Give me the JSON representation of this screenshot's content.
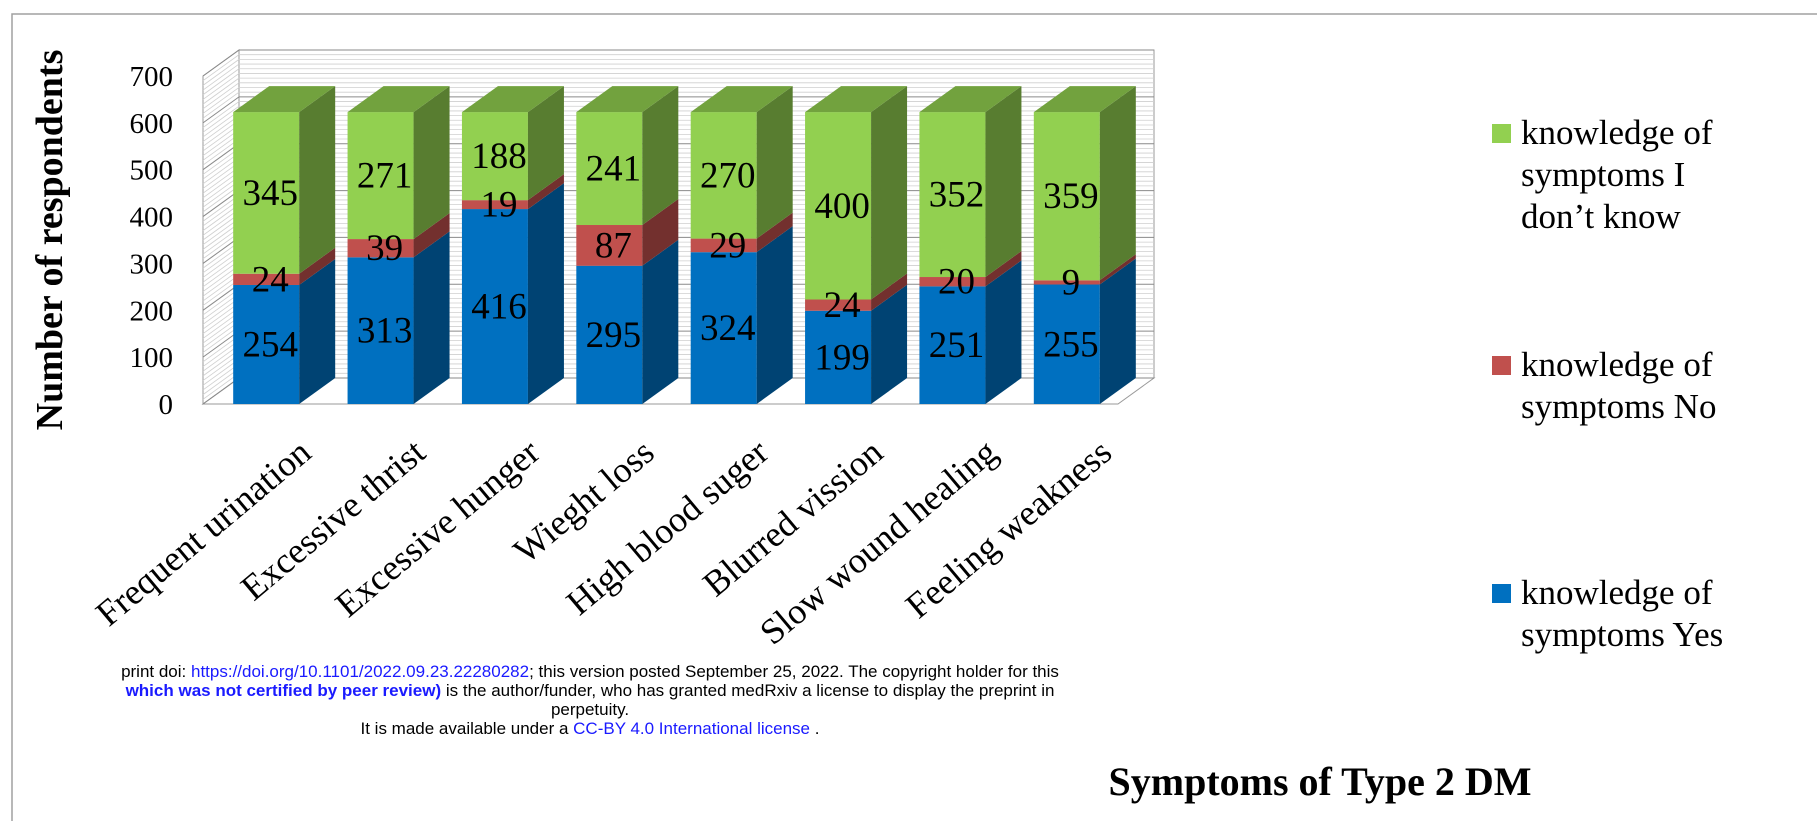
{
  "chart_data": {
    "type": "bar",
    "stacked": true,
    "three_d": true,
    "title": "",
    "xlabel": "Symptoms of Type 2 DM",
    "ylabel": "Number of respondents",
    "ylim": [
      0,
      700
    ],
    "yticks": [
      "0",
      "100",
      "200",
      "300",
      "400",
      "500",
      "600",
      "700"
    ],
    "grid": true,
    "legend_position": "right",
    "categories": [
      "Frequent urination",
      "Excessive thrist",
      "Excessive hunger",
      "Wieght loss",
      "High blood suger",
      "Blurred vission",
      "Slow wound healing",
      "Feeling weakness"
    ],
    "series": [
      {
        "name": "knowledge of symptoms Yes",
        "values": [
          254,
          313,
          416,
          295,
          324,
          199,
          251,
          255
        ],
        "color": "#0070c0"
      },
      {
        "name": "knowledge of symptoms No",
        "values": [
          24,
          39,
          19,
          87,
          29,
          24,
          20,
          9
        ],
        "color": "#c0504d"
      },
      {
        "name": "knowledge of symptoms I don’t know",
        "values": [
          345,
          271,
          188,
          241,
          270,
          400,
          352,
          359
        ],
        "color": "#92d050"
      }
    ],
    "legend": [
      {
        "line1": "knowledge of",
        "line2": "symptoms  I",
        "line3": "don’t know"
      },
      {
        "line1": "knowledge of",
        "line2": "symptoms  No"
      },
      {
        "line1": "knowledge of",
        "line2": "symptoms  Yes"
      }
    ]
  },
  "notice": {
    "line1_a": "print doi: ",
    "line1_link": "https://doi.org/10.1101/2022.09.23.22280282",
    "line1_b": "; this version posted September 25, 2022. The copyright holder for this",
    "line2_bold": "which was not certified by peer review)",
    "line2_b": " is the author/funder, who has granted medRxiv a license to display the preprint in",
    "line3": "perpetuity.",
    "line4_a": "It is made available under a ",
    "line4_link": "CC-BY 4.0 International license",
    "line4_b": " ."
  }
}
